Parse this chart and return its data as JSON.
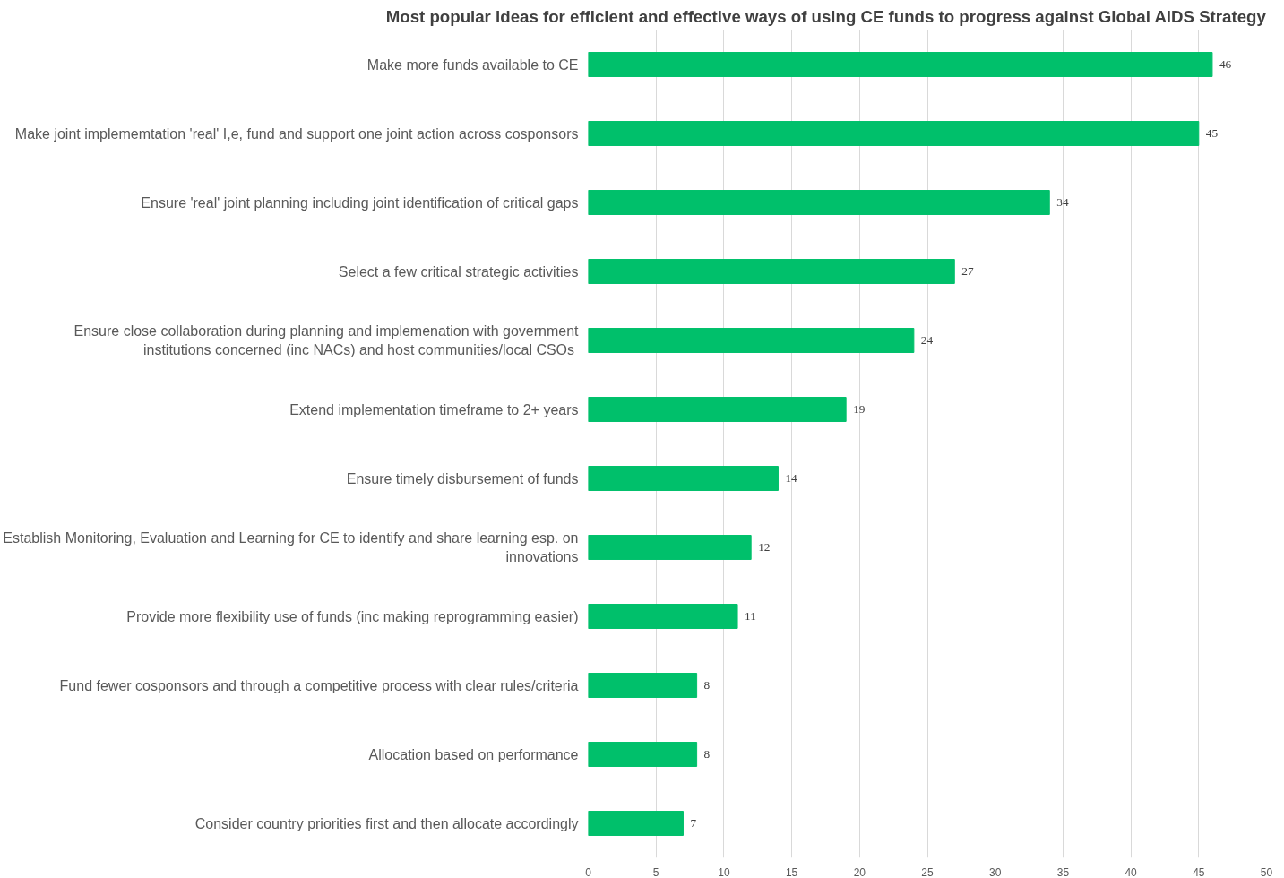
{
  "chart_data": {
    "type": "bar",
    "orientation": "horizontal",
    "title": "Most popular ideas for efficient and effective ways of using CE funds to progress against Global AIDS Strategy",
    "categories": [
      "Make more funds available to CE",
      "Make joint implememtation 'real' I,e, fund and support one joint action across cosponsors",
      "Ensure 'real' joint planning including joint identification of critical gaps",
      "Select a few critical strategic activities",
      "Ensure close collaboration during planning and implemenation with government\ninstitutions concerned (inc  NACs) and host communities/local CSOs",
      "Extend implementation timeframe to 2+ years",
      "Ensure timely disbursement of funds",
      "Establish Monitoring, Evaluation and Learning for CE to identify and share learning esp. on\ninnovations",
      "Provide more flexibility use of funds (inc making reprogramming easier)",
      "Fund fewer cosponsors and through a competitive process with clear rules/criteria",
      "Allocation based on performance",
      "Consider country priorities first and then allocate accordingly"
    ],
    "values": [
      46,
      45,
      34,
      27,
      24,
      19,
      14,
      12,
      11,
      8,
      8,
      7
    ],
    "color": "#00c06b",
    "xlim": [
      0,
      50
    ],
    "xticks": [
      0,
      5,
      10,
      15,
      20,
      25,
      30,
      35,
      40,
      45,
      50
    ],
    "grid": "x",
    "data_labels": true
  }
}
